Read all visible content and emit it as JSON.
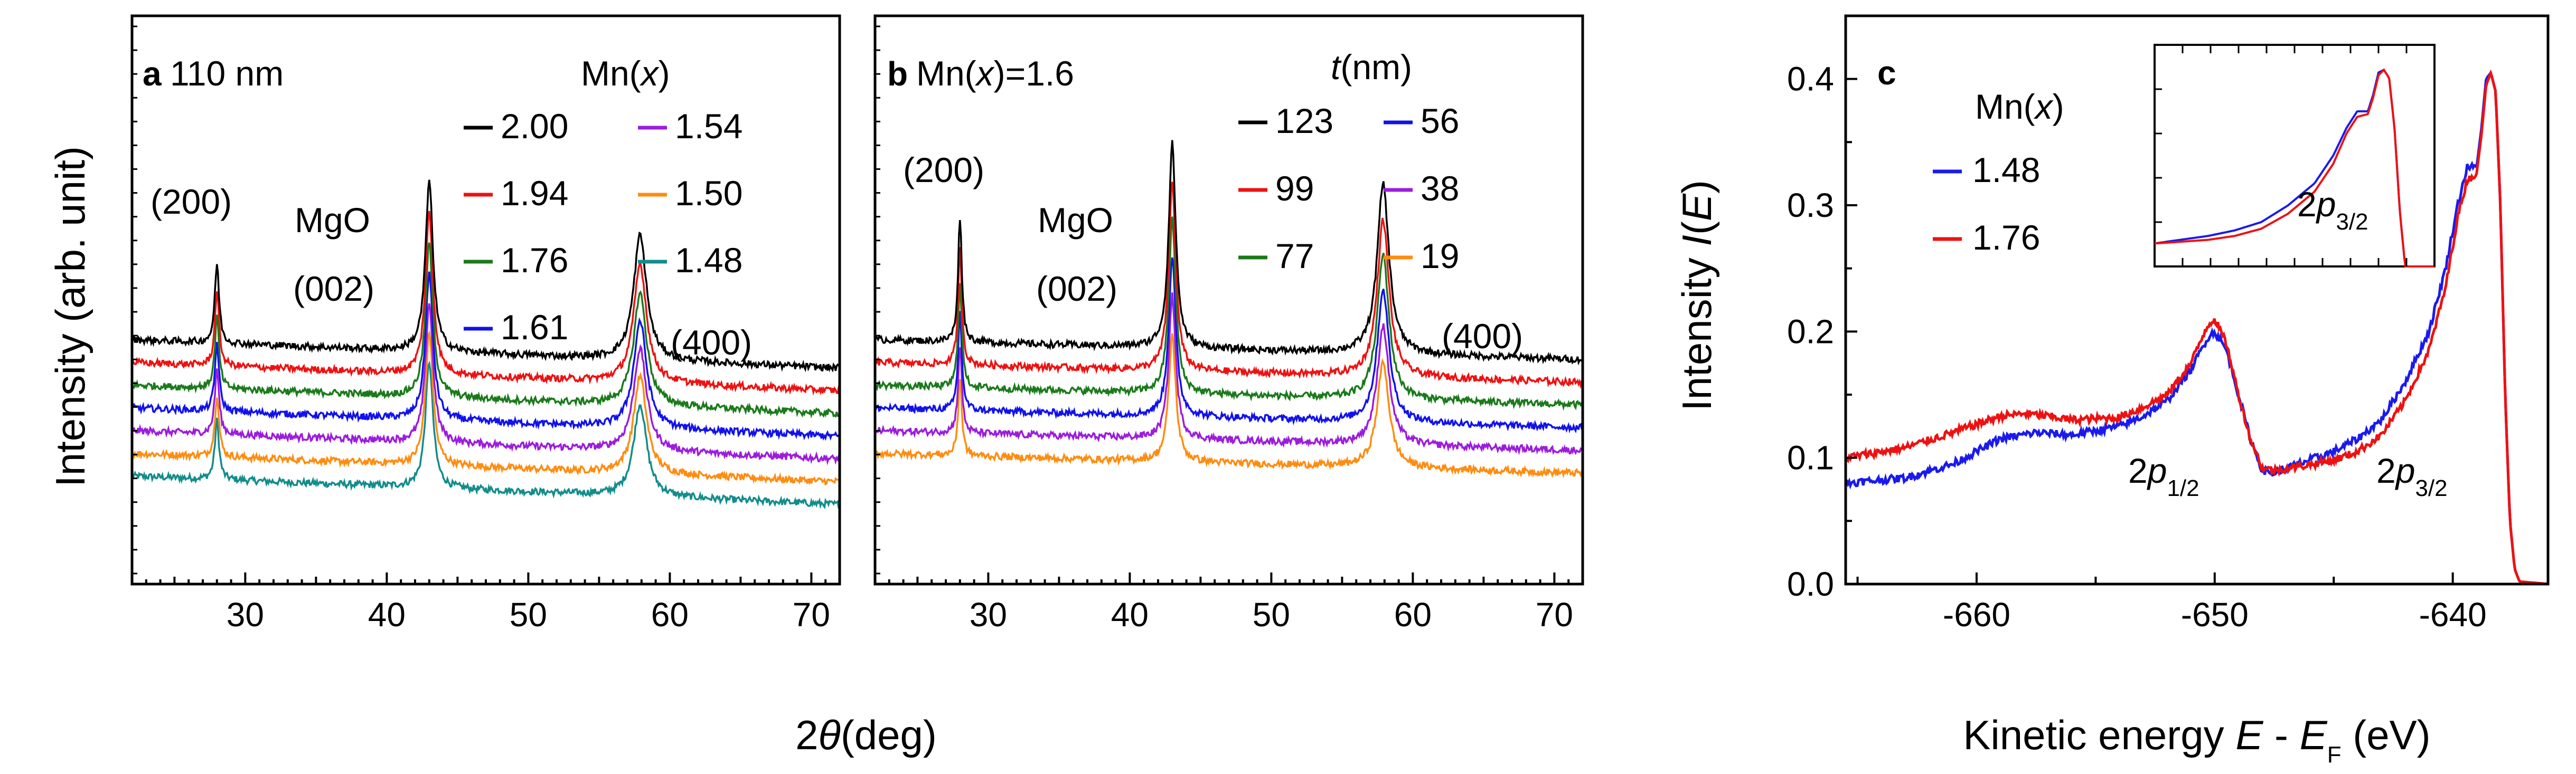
{
  "figure": {
    "xlabel_ab": "2θ(deg)"
  },
  "chart_data": [
    {
      "panel": "a",
      "type": "line",
      "tag": "a",
      "title": "110 nm",
      "xlabel": "2θ(deg)",
      "ylabel": "Intensity (arb. unit)",
      "xlim": [
        22,
        72
      ],
      "ylim": [
        0,
        1
      ],
      "xticks": [
        30,
        40,
        50,
        60,
        70
      ],
      "legend_title": "Mn(x)",
      "annotations": [
        "(200)",
        "MgO",
        "(002)",
        "(400)"
      ],
      "peaks": [
        {
          "x": 28.0,
          "height": 0.14,
          "width": 0.18
        },
        {
          "x": 43.0,
          "height": 0.3,
          "width": 0.32
        },
        {
          "x": 57.9,
          "height": 0.22,
          "width": 0.55
        }
      ],
      "series": [
        {
          "name": "2.00",
          "color": "#000000",
          "offset": 0.43,
          "slope": -0.001,
          "peak_scale": 1.0
        },
        {
          "name": "1.94",
          "color": "#ee1111",
          "offset": 0.39,
          "slope": -0.001,
          "peak_scale": 0.95
        },
        {
          "name": "1.76",
          "color": "#1a7a1a",
          "offset": 0.35,
          "slope": -0.001,
          "peak_scale": 0.9
        },
        {
          "name": "1.61",
          "color": "#1111ee",
          "offset": 0.31,
          "slope": -0.001,
          "peak_scale": 0.86
        },
        {
          "name": "1.54",
          "color": "#9c1cdc",
          "offset": 0.27,
          "slope": -0.001,
          "peak_scale": 0.82
        },
        {
          "name": "1.50",
          "color": "#ff8c10",
          "offset": 0.23,
          "slope": -0.001,
          "peak_scale": 0.78
        },
        {
          "name": "1.48",
          "color": "#138c8c",
          "offset": 0.19,
          "slope": -0.001,
          "peak_scale": 0.74
        }
      ]
    },
    {
      "panel": "b",
      "type": "line",
      "tag": "b",
      "title": "Mn(x)=1.6",
      "xlabel": "2θ(deg)",
      "ylabel": "",
      "xlim": [
        22,
        72
      ],
      "ylim": [
        0,
        1
      ],
      "xticks": [
        30,
        40,
        50,
        60,
        70
      ],
      "legend_title": "t(nm)",
      "annotations": [
        "(200)",
        "MgO",
        "(002)",
        "(400)"
      ],
      "peaks": [
        {
          "x": 28.0,
          "height": 0.22,
          "width": 0.16
        },
        {
          "x": 43.0,
          "height": 0.36,
          "width": 0.3
        },
        {
          "x": 57.9,
          "height": 0.3,
          "width": 0.5
        }
      ],
      "series": [
        {
          "name": "123",
          "color": "#000000",
          "offset": 0.43,
          "slope": -0.0007,
          "peak_scale": 1.0
        },
        {
          "name": "99",
          "color": "#ee1111",
          "offset": 0.39,
          "slope": -0.0007,
          "peak_scale": 0.92
        },
        {
          "name": "77",
          "color": "#1a7a1a",
          "offset": 0.35,
          "slope": -0.0007,
          "peak_scale": 0.85
        },
        {
          "name": "56",
          "color": "#1111ee",
          "offset": 0.31,
          "slope": -0.0007,
          "peak_scale": 0.78
        },
        {
          "name": "38",
          "color": "#9c1cdc",
          "offset": 0.27,
          "slope": -0.0007,
          "peak_scale": 0.7
        },
        {
          "name": "19",
          "color": "#ff8c10",
          "offset": 0.23,
          "slope": -0.0007,
          "peak_scale": 0.62
        }
      ]
    },
    {
      "panel": "c",
      "type": "line",
      "tag": "c",
      "title": "",
      "xlabel": "Kinetic energy E - E_F (eV)",
      "ylabel": "Intensity I(E)",
      "xlim": [
        -665.5,
        -636
      ],
      "ylim": [
        0,
        0.45
      ],
      "xticks": [
        -660,
        -650,
        -640
      ],
      "yticks": [
        0.0,
        0.1,
        0.2,
        0.3,
        0.4
      ],
      "legend_title": "Mn(x)",
      "annotations": [
        "2p1/2",
        "2p3/2"
      ],
      "inset_annotation": "2p3/2",
      "series": [
        {
          "name": "1.48",
          "color": "#1a1aee",
          "x": [
            -665.5,
            -663,
            -661,
            -659,
            -657.5,
            -656,
            -654,
            -653,
            -652,
            -651,
            -650.3,
            -650,
            -649.5,
            -649,
            -648.5,
            -648,
            -647.5,
            -646.5,
            -645,
            -644,
            -643,
            -642,
            -641,
            -640.3,
            -639.8,
            -639.4,
            -639,
            -638.8,
            -638.6,
            -638.4,
            -638.2,
            -638.0,
            -637.8,
            -637.6,
            -637.4,
            -637.2,
            -636
          ],
          "y": [
            0.08,
            0.084,
            0.095,
            0.115,
            0.12,
            0.118,
            0.125,
            0.133,
            0.145,
            0.17,
            0.195,
            0.2,
            0.185,
            0.15,
            0.115,
            0.09,
            0.088,
            0.095,
            0.105,
            0.115,
            0.13,
            0.16,
            0.2,
            0.25,
            0.3,
            0.33,
            0.33,
            0.36,
            0.4,
            0.405,
            0.39,
            0.3,
            0.15,
            0.05,
            0.012,
            0.002,
            0.0
          ]
        },
        {
          "name": "1.76",
          "color": "#ee1111",
          "x": [
            -665.5,
            -663,
            -661,
            -659,
            -658,
            -657,
            -656,
            -654,
            -653,
            -652,
            -651,
            -650.3,
            -650,
            -649.5,
            -649,
            -648.5,
            -648,
            -647.5,
            -646.5,
            -645,
            -644,
            -643,
            -642,
            -641,
            -640.3,
            -639.8,
            -639.4,
            -639,
            -638.8,
            -638.6,
            -638.4,
            -638.2,
            -638.0,
            -637.8,
            -637.6,
            -637.4,
            -637.2,
            -636
          ],
          "y": [
            0.1,
            0.108,
            0.12,
            0.133,
            0.135,
            0.133,
            0.13,
            0.132,
            0.14,
            0.15,
            0.175,
            0.205,
            0.21,
            0.19,
            0.15,
            0.115,
            0.092,
            0.09,
            0.093,
            0.098,
            0.105,
            0.118,
            0.145,
            0.185,
            0.235,
            0.29,
            0.32,
            0.325,
            0.355,
            0.395,
            0.405,
            0.39,
            0.3,
            0.15,
            0.05,
            0.012,
            0.002,
            0.0
          ]
        }
      ],
      "inset": {
        "xlim": [
          -647,
          -636.5
        ],
        "ylim": [
          0.05,
          0.45
        ],
        "series_names": [
          "1.48",
          "1.76"
        ]
      }
    }
  ]
}
